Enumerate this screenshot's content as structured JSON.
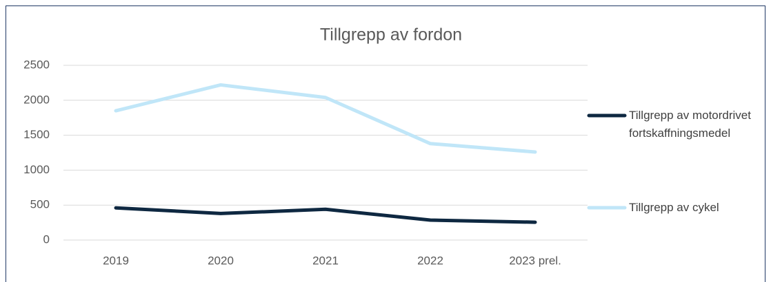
{
  "chart_data": {
    "type": "line",
    "title": "Tillgrepp av fordon",
    "categories": [
      "2019",
      "2020",
      "2021",
      "2022",
      "2023 prel."
    ],
    "series": [
      {
        "name": "Tillgrepp av motordrivet fortskaffningsmedel",
        "color": "#0e2841",
        "values": [
          460,
          380,
          440,
          285,
          255
        ]
      },
      {
        "name": "Tillgrepp av cykel",
        "color": "#c0e6f8",
        "values": [
          1850,
          2220,
          2040,
          1380,
          1260
        ]
      }
    ],
    "ylim": [
      0,
      2500
    ],
    "yticks": [
      0,
      500,
      1000,
      1500,
      2000,
      2500
    ],
    "grid": true,
    "legend": "right"
  }
}
